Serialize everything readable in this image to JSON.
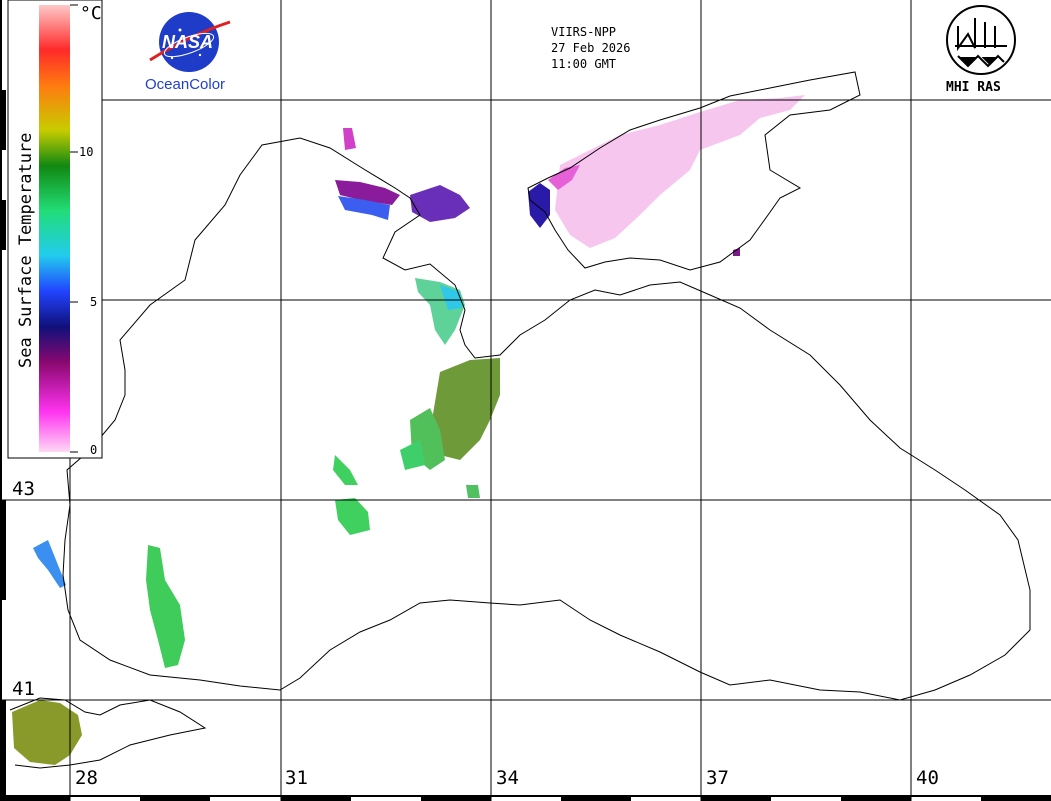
{
  "header": {
    "satellite": "VIIRS-NPP",
    "date": "27 Feb 2026",
    "time": "11:00 GMT"
  },
  "logos": {
    "nasa": {
      "icon": "nasa-meatball-icon",
      "word": "NASA",
      "caption": "OceanColor"
    },
    "institute": {
      "icon": "mhi-ras-logo-icon",
      "caption": "MHI RAS"
    }
  },
  "colorbar": {
    "title": "Sea Surface Temperature",
    "unit": "°C",
    "ticks": [
      "0",
      "5",
      "10"
    ],
    "range": [
      0,
      15
    ],
    "colors": [
      "#ffd8f4",
      "#ff33f0",
      "#8a0870",
      "#10107a",
      "#2244ff",
      "#22ccee",
      "#22dd77",
      "#118811",
      "#c8cc00",
      "#ff7a10",
      "#ff2a2a",
      "#ffc8c8"
    ]
  },
  "graticule": {
    "latitudes": [
      "43",
      "41"
    ],
    "longitudes": [
      "28",
      "31",
      "34",
      "37",
      "40"
    ]
  },
  "colors": {
    "coast": "#000000",
    "grid": "#000000",
    "background": "#ffffff"
  }
}
